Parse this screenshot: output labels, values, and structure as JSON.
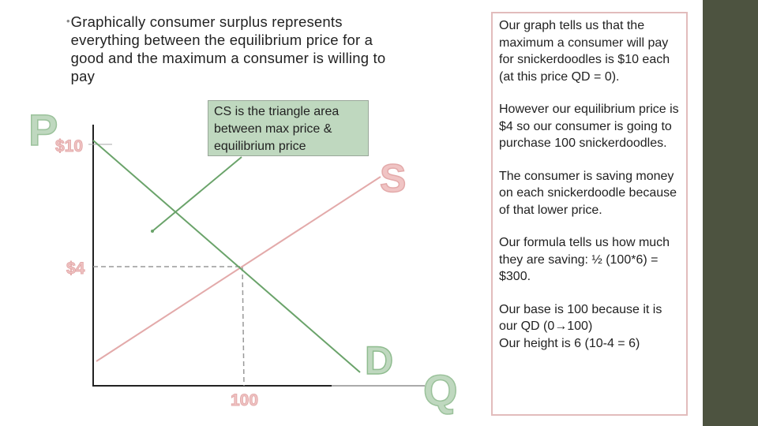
{
  "bullet": {
    "text": "Graphically consumer surplus represents everything between the equilibrium price for a good and the maximum a consumer is willing to pay"
  },
  "cs_callout": "CS is the triangle area between max price & equilibrium price",
  "graph": {
    "axis_price": "P",
    "axis_quantity": "Q",
    "price_max_label": "$10",
    "price_eq_label": "$4",
    "quantity_eq_label": "100",
    "supply_label": "S",
    "demand_label": "D"
  },
  "explanation": {
    "p1": "Our graph tells us that the maximum a consumer will pay for snickerdoodles is $10 each (at this price QD = 0).",
    "p2": "However our equilibrium price is $4 so our consumer is going to purchase 100 snickerdoodles.",
    "p3": "The consumer is saving money on each snickerdoodle because of that lower price.",
    "p4": "Our formula tells us how much they are saving: ½ (100*6) = $300.",
    "p5_line1_pre": "Our base is 100 because it is our QD (0",
    "p5_line1_post": "100)",
    "p5_line2": "Our height is 6 (10-4 = 6)"
  },
  "colors": {
    "demand": "#6aa36a",
    "supply": "#e3aaaa",
    "sidebar": "#4d5340",
    "callout_bg": "#bfd8bf",
    "box_border": "#e2bcbc"
  }
}
